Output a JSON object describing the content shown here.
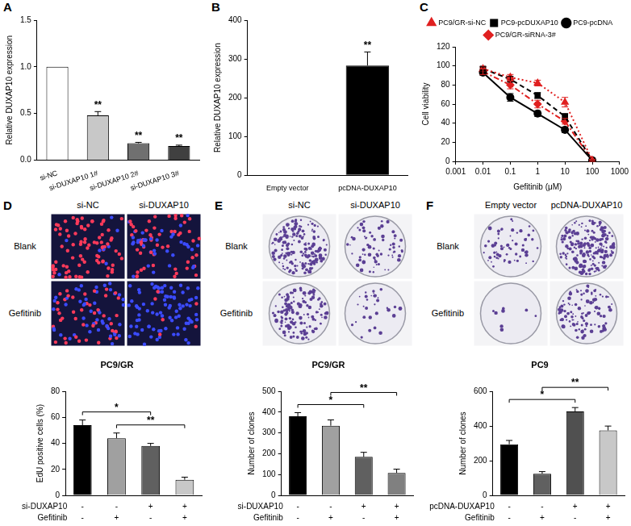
{
  "chart_data": [
    {
      "panel": "A",
      "type": "bar",
      "categories": [
        "si-NC",
        "si-DUXAP10 1#",
        "si-DUXAP10 2#",
        "si-DUXAP10 3#"
      ],
      "values": [
        1.0,
        0.48,
        0.18,
        0.15
      ],
      "errors": [
        0,
        0.04,
        0.01,
        0.01
      ],
      "colors": [
        "#ffffff",
        "#c8c8c8",
        "#707070",
        "#404040"
      ],
      "significance": [
        null,
        "**",
        "**",
        "**"
      ],
      "ylabel": "Relative DUXAP10 expression",
      "ylim": [
        0,
        1.5
      ],
      "yticks": [
        {
          "value": 0,
          "label": "0.0"
        },
        {
          "value": 0.5,
          "label": "0.5"
        },
        {
          "value": 1,
          "label": "1.0"
        },
        {
          "value": 1.5,
          "label": "1.5"
        }
      ],
      "grid": false
    },
    {
      "panel": "B",
      "type": "bar",
      "categories": [
        "Empty vector",
        "pcDNA-DUXAP10"
      ],
      "values": [
        1,
        283
      ],
      "errors": [
        0,
        35
      ],
      "colors": [
        "#ffffff",
        "#000000"
      ],
      "significance": [
        null,
        "**"
      ],
      "ylabel": "Relative DUXAP10 expression",
      "ylim": [
        0,
        400
      ],
      "yticks": [
        0,
        100,
        200,
        300,
        400
      ],
      "grid": false
    },
    {
      "panel": "C",
      "type": "line",
      "log": "x",
      "x": [
        0.01,
        0.1,
        1,
        10,
        100
      ],
      "series": [
        {
          "name": "PC9/GR-si-NC",
          "color": "#e02020",
          "values": [
            97,
            88,
            82,
            62,
            1
          ],
          "errors": [
            2,
            3,
            3,
            5,
            1
          ],
          "marker": "triangle",
          "line_style": "dotted"
        },
        {
          "name": "PC9-pcDUXAP10",
          "color": "#000000",
          "values": [
            97,
            86,
            69,
            47,
            1
          ],
          "errors": [
            2,
            3,
            3,
            3,
            1
          ],
          "marker": "square",
          "line_style": "dashed"
        },
        {
          "name": "PC9-pcDNA",
          "color": "#000000",
          "values": [
            93,
            67,
            50,
            33,
            1
          ],
          "errors": [
            3,
            4,
            3,
            3,
            1
          ],
          "marker": "circle",
          "line_style": "solid"
        },
        {
          "name": "PC9/GR-siRNA-3#",
          "color": "#e02020",
          "values": [
            94,
            80,
            60,
            42,
            1
          ],
          "errors": [
            3,
            4,
            4,
            3,
            1
          ],
          "marker": "diamond",
          "line_style": "dashdot"
        }
      ],
      "xlabel": "Gefitinib (μM)",
      "ylabel": "Cell viability",
      "xlim": [
        0.001,
        1000
      ],
      "xticks": [
        0.001,
        0.01,
        0.1,
        1,
        10,
        100,
        1000
      ],
      "ylim": [
        0,
        120
      ],
      "yticks": [
        0,
        20,
        40,
        60,
        80,
        100,
        120
      ],
      "legend": "top",
      "grid": false
    },
    {
      "type": "bar",
      "title": "PC9/GR",
      "categories": [
        null,
        null,
        null,
        null
      ],
      "values": [
        54,
        44,
        38,
        12
      ],
      "errors": [
        4,
        4,
        2,
        2
      ],
      "colors": [
        "#000000",
        "#a0a0a0",
        "#606060",
        "#c8c8c8"
      ],
      "factors": [
        {
          "name": "si-DUXAP10",
          "levels": [
            "-",
            "-",
            "+",
            "+"
          ]
        },
        {
          "name": "Gefitinib",
          "levels": [
            "-",
            "+",
            "-",
            "+"
          ]
        }
      ],
      "comparisons": [
        {
          "from": 0,
          "to": 2,
          "label": "*"
        },
        {
          "from": 1,
          "to": 3,
          "label": "**"
        }
      ],
      "ylabel": "EdU positive cells (%)",
      "ylim": [
        0,
        80
      ],
      "yticks": [
        0,
        20,
        40,
        60,
        80
      ],
      "grid": false
    },
    {
      "type": "bar",
      "title": "PC9/GR",
      "categories": [
        null,
        null,
        null,
        null
      ],
      "values": [
        380,
        335,
        185,
        108
      ],
      "errors": [
        18,
        28,
        22,
        18
      ],
      "colors": [
        "#000000",
        "#a0a0a0",
        "#606060",
        "#808080"
      ],
      "factors": [
        {
          "name": "si-DUXAP10",
          "levels": [
            "-",
            "-",
            "+",
            "+"
          ]
        },
        {
          "name": "Gefitinib",
          "levels": [
            "-",
            "+",
            "-",
            "+"
          ]
        }
      ],
      "comparisons": [
        {
          "from": 0,
          "to": 2,
          "label": "*"
        },
        {
          "from": 1,
          "to": 3,
          "label": "**"
        }
      ],
      "ylabel": "Number of clones",
      "ylim": [
        0,
        500
      ],
      "yticks": [
        0,
        100,
        200,
        300,
        400,
        500
      ],
      "grid": false
    },
    {
      "type": "bar",
      "title": "PC9",
      "categories": [
        null,
        null,
        null,
        null
      ],
      "values": [
        295,
        125,
        485,
        375
      ],
      "errors": [
        22,
        12,
        22,
        25
      ],
      "colors": [
        "#000000",
        "#606060",
        "#505050",
        "#c8c8c8"
      ],
      "factors": [
        {
          "name": "pcDNA-DUXAP10",
          "levels": [
            "-",
            "-",
            "+",
            "+"
          ]
        },
        {
          "name": "Gefitinib",
          "levels": [
            "-",
            "+",
            "-",
            "+"
          ]
        }
      ],
      "comparisons": [
        {
          "from": 0,
          "to": 2,
          "label": "*"
        },
        {
          "from": 1,
          "to": 3,
          "label": "**"
        }
      ],
      "ylabel": "Number of clones",
      "ylim": [
        0,
        600
      ],
      "yticks": [
        0,
        200,
        400,
        600
      ],
      "grid": false
    }
  ],
  "images": [
    {
      "panel": "D",
      "columns": [
        "si-NC",
        "si-DUXAP10"
      ],
      "rows": [
        "Blank",
        "Gefitinib"
      ]
    },
    {
      "panel": "E",
      "columns": [
        "si-NC",
        "si-DUXAP10"
      ],
      "rows": [
        "Blank",
        "Gefitinib"
      ]
    },
    {
      "panel": "F",
      "columns": [
        "Empty vector",
        "pcDNA-DUXAP10"
      ],
      "rows": [
        "Blank",
        "Gefitinib"
      ]
    }
  ]
}
